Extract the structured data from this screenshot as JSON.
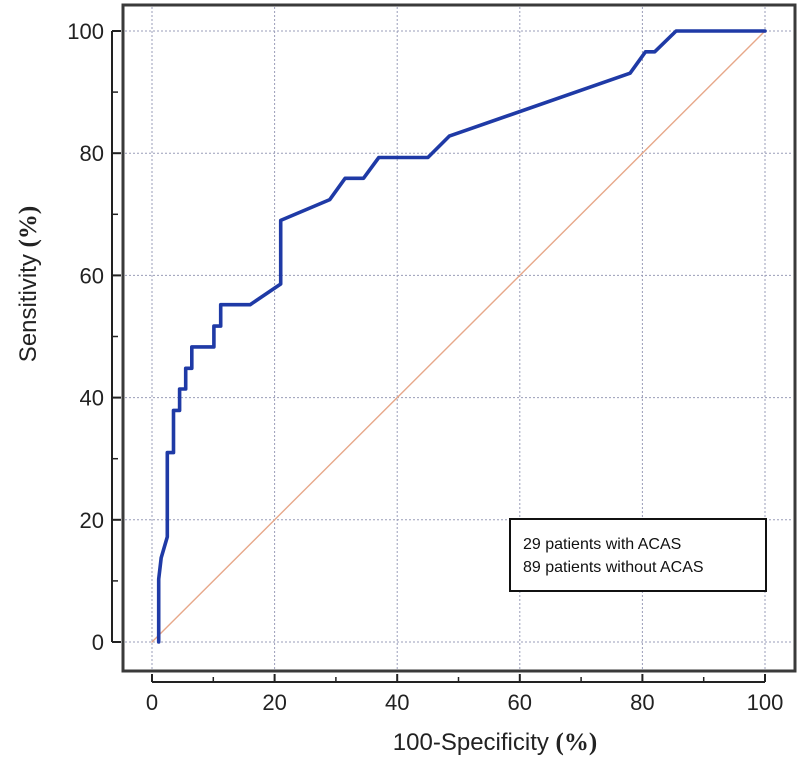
{
  "chart_data": {
    "type": "line",
    "title": "",
    "xlabel": "100-Specificity",
    "xlabel_unit": "(%)",
    "ylabel": "Sensitivity",
    "ylabel_unit": "(%)",
    "xlim": [
      0,
      100
    ],
    "ylim": [
      0,
      100
    ],
    "xticks": [
      0,
      20,
      40,
      60,
      80,
      100
    ],
    "yticks": [
      0,
      20,
      40,
      60,
      80,
      100
    ],
    "grid": true,
    "legend_text": [
      "29 patients with ACAS",
      "89 patients without ACAS"
    ],
    "legend_placement": "bottom-right",
    "series": [
      {
        "color": "#1f3aa6",
        "x": [
          1.1,
          1.1,
          1.5,
          2.5,
          2.5,
          3.5,
          3.5,
          4.5,
          4.5,
          5.5,
          5.5,
          6.5,
          6.5,
          10.1,
          10.1,
          11.2,
          11.2,
          16.0,
          21.0,
          21.0,
          29.0,
          31.5,
          34.5,
          37.0,
          45.0,
          48.5,
          78.0,
          80.5,
          82.0,
          85.5,
          100.0
        ],
        "y": [
          0,
          10.3,
          13.8,
          17.2,
          31.0,
          31.0,
          37.9,
          37.9,
          41.4,
          41.4,
          44.8,
          44.8,
          48.3,
          48.3,
          51.7,
          51.7,
          55.2,
          55.2,
          58.6,
          69.0,
          72.4,
          75.9,
          75.9,
          79.3,
          79.3,
          82.8,
          93.1,
          96.6,
          96.6,
          100.0,
          100.0
        ]
      },
      {
        "color": "#e7a88a",
        "x": [
          0,
          100
        ],
        "y": [
          0,
          100
        ]
      }
    ]
  }
}
